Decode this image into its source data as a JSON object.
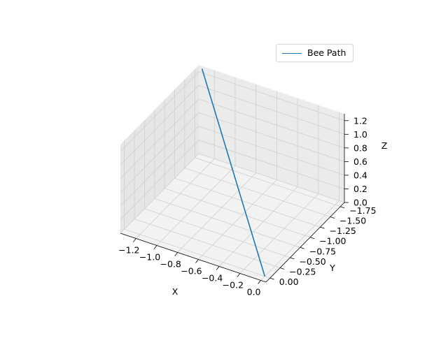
{
  "chart_data": {
    "type": "line",
    "projection": "3d",
    "title": "",
    "xlabel": "X",
    "ylabel": "Y",
    "zlabel": "Z",
    "xlim": [
      -1.35,
      0.05
    ],
    "ylim": [
      -1.85,
      0.1
    ],
    "zlim": [
      0,
      1.3
    ],
    "x_ticks": [
      -1.2,
      -1.0,
      -0.8,
      -0.6,
      -0.4,
      -0.2,
      0.0
    ],
    "x_tick_labels": [
      "−1.2",
      "−1.0",
      "−0.8",
      "−0.6",
      "−0.4",
      "−0.2",
      "0.0"
    ],
    "y_ticks": [
      0.0,
      -0.25,
      -0.5,
      -0.75,
      -1.0,
      -1.25,
      -1.5,
      -1.75
    ],
    "y_tick_labels": [
      "0.00",
      "−0.25",
      "−0.50",
      "−0.75",
      "−1.00",
      "−1.25",
      "−1.50",
      "−1.75"
    ],
    "z_ticks": [
      0.0,
      0.2,
      0.4,
      0.6,
      0.8,
      1.0,
      1.2
    ],
    "z_tick_labels": [
      "0.0",
      "0.2",
      "0.4",
      "0.6",
      "0.8",
      "1.0",
      "1.2"
    ],
    "grid": true,
    "legend_position": "top-right",
    "series": [
      {
        "name": "Bee Path",
        "color": "#1f77b4",
        "x": [
          -1.3,
          0.0
        ],
        "y": [
          -1.8,
          0.0
        ],
        "z": [
          1.3,
          0.0
        ]
      }
    ]
  }
}
